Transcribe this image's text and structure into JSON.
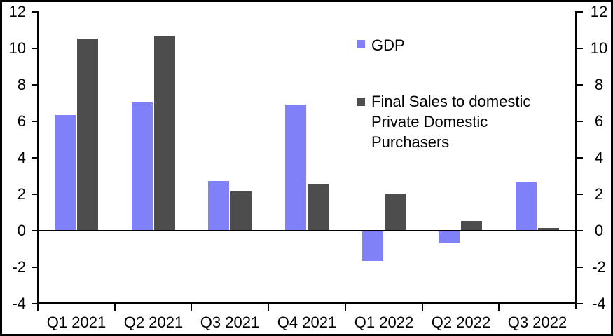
{
  "chart_data": {
    "type": "bar",
    "title": "",
    "xlabel": "",
    "ylabel": "",
    "categories": [
      "Q1 2021",
      "Q2 2021",
      "Q3 2021",
      "Q4 2021",
      "Q1 2022",
      "Q2 2022",
      "Q3 2022"
    ],
    "series": [
      {
        "name": "GDP",
        "color": "#8080F8",
        "values": [
          6.3,
          7.0,
          2.7,
          6.9,
          -1.6,
          -0.6,
          2.6
        ]
      },
      {
        "name": "Final Sales to domestic Private Domestic Purchasers",
        "color": "#4D4D4D",
        "values": [
          10.5,
          10.6,
          2.1,
          2.5,
          2.0,
          0.5,
          0.1
        ]
      }
    ],
    "ylim": [
      -4,
      12
    ],
    "ytick_step": 2,
    "y_axis_sides": "both",
    "grid": false,
    "legend_position": "inside-upper-right"
  },
  "legend": {
    "gdp": {
      "label": "GDP",
      "color": "#8080F8"
    },
    "final_sales": {
      "color": "#4D4D4D",
      "lines": [
        "Final Sales to domestic",
        "Private Domestic",
        "Purchasers"
      ]
    }
  },
  "colors": {
    "background": "#FFFFFF",
    "frame_border": "#000000",
    "axis": "#000000",
    "text": "#000000"
  }
}
